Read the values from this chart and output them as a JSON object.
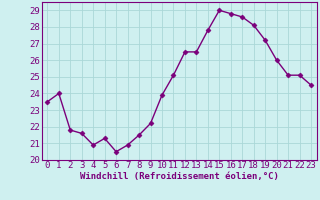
{
  "hours": [
    0,
    1,
    2,
    3,
    4,
    5,
    6,
    7,
    8,
    9,
    10,
    11,
    12,
    13,
    14,
    15,
    16,
    17,
    18,
    19,
    20,
    21,
    22,
    23
  ],
  "values": [
    23.5,
    24.0,
    21.8,
    21.6,
    20.9,
    21.3,
    20.5,
    20.9,
    21.5,
    22.2,
    23.9,
    25.1,
    26.5,
    26.5,
    27.8,
    29.0,
    28.8,
    28.6,
    28.1,
    27.2,
    26.0,
    25.1,
    25.1,
    24.5
  ],
  "line_color": "#7B007B",
  "marker": "D",
  "marker_size": 2.5,
  "bg_color": "#cff0f0",
  "grid_color": "#aad8d8",
  "xlabel": "Windchill (Refroidissement éolien,°C)",
  "ylim": [
    20,
    29.5
  ],
  "yticks": [
    20,
    21,
    22,
    23,
    24,
    25,
    26,
    27,
    28,
    29
  ],
  "xticks": [
    0,
    1,
    2,
    3,
    4,
    5,
    6,
    7,
    8,
    9,
    10,
    11,
    12,
    13,
    14,
    15,
    16,
    17,
    18,
    19,
    20,
    21,
    22,
    23
  ],
  "xlabel_fontsize": 6.5,
  "tick_fontsize": 6.5,
  "line_width": 1.0,
  "spine_color": "#7B007B",
  "text_color": "#7B007B"
}
